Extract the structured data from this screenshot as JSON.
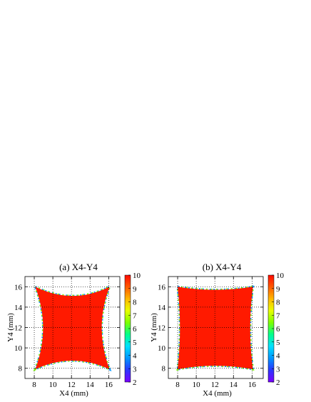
{
  "colors": {
    "fill": "#ff1a00",
    "grid": "#000000",
    "colormap": [
      "#7a00ff",
      "#2d35ff",
      "#0096ff",
      "#00e0ff",
      "#00ff8c",
      "#7dff00",
      "#e8ff00",
      "#ffb800",
      "#ff5a00",
      "#ff0a00"
    ]
  },
  "chart_data": [
    {
      "type": "heatmap",
      "title": "(a) X4-Y4",
      "xlabel": "X4 (mm)",
      "ylabel": "Y4 (mm)",
      "xlim": [
        7,
        17.2
      ],
      "ylim": [
        7,
        17
      ],
      "xticks": [
        8,
        10,
        12,
        14,
        16
      ],
      "yticks": [
        8,
        10,
        12,
        14,
        16
      ],
      "grid": true,
      "shape": "square with concave (pincushion) edges",
      "corners": {
        "x": [
          8.1,
          16.1
        ],
        "y": [
          7.9,
          16.0
        ]
      },
      "edge_inset_mm": {
        "top": 0.9,
        "bottom": 0.85,
        "left": 0.85,
        "right": 0.85
      },
      "fill_value": 10,
      "colorbar": {
        "min": 2,
        "max": 10,
        "ticks": [
          2,
          3,
          4,
          5,
          6,
          7,
          8,
          9,
          10
        ]
      }
    },
    {
      "type": "heatmap",
      "title": "(b) X4-Y4",
      "xlabel": "X4 (mm)",
      "ylabel": "Y4 (mm)",
      "xlim": [
        7,
        17.2
      ],
      "ylim": [
        7,
        17
      ],
      "xticks": [
        8,
        10,
        12,
        14,
        16
      ],
      "yticks": [
        8,
        10,
        12,
        14,
        16
      ],
      "grid": true,
      "shape": "square with slightly concave edges",
      "corners": {
        "x": [
          8.0,
          16.1
        ],
        "y": [
          7.9,
          16.0
        ]
      },
      "edge_inset_mm": {
        "top": 0.3,
        "bottom": 0.35,
        "left": 0.25,
        "right": 0.3
      },
      "fill_value": 10,
      "colorbar": {
        "min": 2,
        "max": 10,
        "ticks": [
          2,
          3,
          4,
          5,
          6,
          7,
          8,
          9,
          10
        ]
      }
    }
  ]
}
